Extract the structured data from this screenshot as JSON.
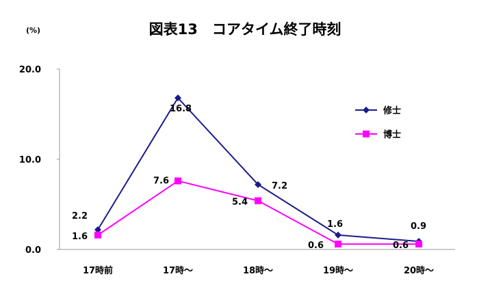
{
  "chart_data": {
    "type": "line",
    "title": "図表13　コアタイム終了時刻",
    "unit_label": "(%)",
    "categories": [
      "17時前",
      "17時～",
      "18時～",
      "19時～",
      "20時～"
    ],
    "y_ticks": [
      "0.0",
      "10.0",
      "20.0"
    ],
    "ylim": [
      0,
      20
    ],
    "grid": false,
    "legend_position": "top-right",
    "series": [
      {
        "name": "修士",
        "color": "#1a1a8c",
        "marker": "diamond",
        "values": [
          2.2,
          16.8,
          7.2,
          1.6,
          0.9
        ],
        "labels": [
          "2.2",
          "16.8",
          "7.2",
          "1.6",
          "0.9"
        ]
      },
      {
        "name": "博士",
        "color": "#ff00ff",
        "marker": "square",
        "values": [
          1.6,
          7.6,
          5.4,
          0.6,
          0.6
        ],
        "labels": [
          "1.6",
          "7.6",
          "5.4",
          "0.6",
          "0.6"
        ]
      }
    ]
  }
}
